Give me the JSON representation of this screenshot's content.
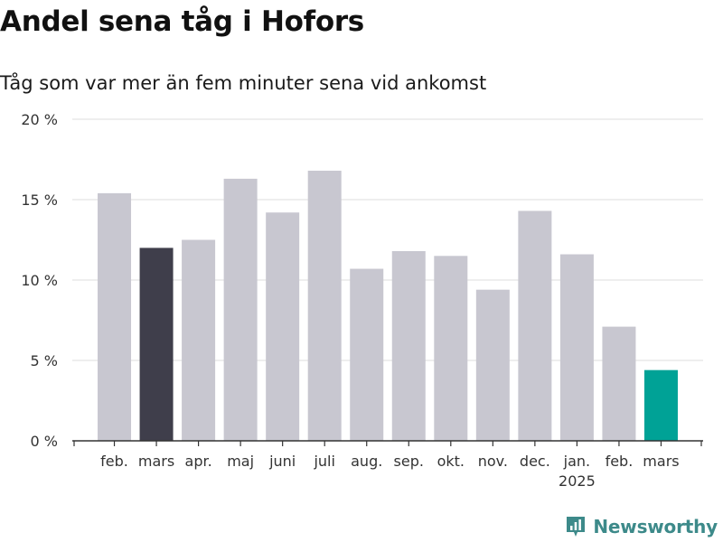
{
  "header": {
    "title": "Andel sena tåg i Hofors",
    "subtitle": "Tåg som var mer än fem minuter sena vid ankomst"
  },
  "brand": {
    "name": "Newsworthy",
    "color": "#3d8a8a",
    "icon": "newsworthy-logo-icon"
  },
  "chart_data": {
    "type": "bar",
    "categories": [
      "feb.",
      "mars",
      "apr.",
      "maj",
      "juni",
      "juli",
      "aug.",
      "sep.",
      "okt.",
      "nov.",
      "dec.",
      "jan.",
      "feb.",
      "mars"
    ],
    "category_sublabels": [
      "",
      "",
      "",
      "",
      "",
      "",
      "",
      "",
      "",
      "",
      "",
      "2025",
      "",
      ""
    ],
    "values": [
      15.4,
      12.0,
      12.5,
      16.3,
      14.2,
      16.8,
      10.7,
      11.8,
      11.5,
      9.4,
      14.3,
      11.6,
      7.1,
      4.4
    ],
    "colors": [
      "#c8c7d0",
      "#3f3e4b",
      "#c8c7d0",
      "#c8c7d0",
      "#c8c7d0",
      "#c8c7d0",
      "#c8c7d0",
      "#c8c7d0",
      "#c8c7d0",
      "#c8c7d0",
      "#c8c7d0",
      "#c8c7d0",
      "#c8c7d0",
      "#00a296"
    ],
    "yticks": [
      0,
      5,
      10,
      15,
      20
    ],
    "ytick_labels": [
      "0 %",
      "5 %",
      "10 %",
      "15 %",
      "20 %"
    ],
    "ylim": [
      0,
      20
    ],
    "grid": true,
    "title": "Andel sena tåg i Hofors",
    "subtitle": "Tåg som var mer än fem minuter sena vid ankomst",
    "xlabel": "",
    "ylabel": ""
  }
}
